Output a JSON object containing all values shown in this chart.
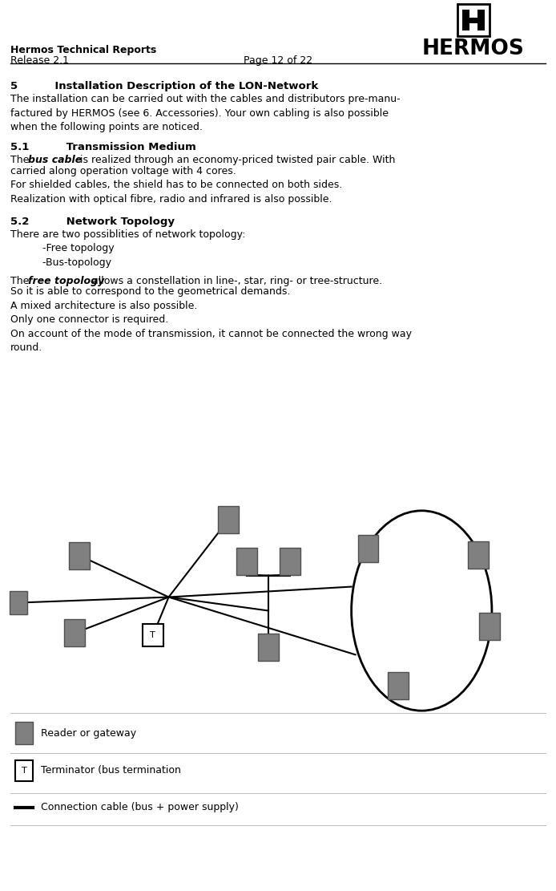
{
  "page_width": 6.94,
  "page_height": 11.11,
  "bg_color": "#ffffff",
  "header_left_bold": "Hermos Technical Reports",
  "header_left_normal": "Release 2.1",
  "header_center": "Page 12 of 22",
  "logo_text": "HERMOS",
  "section5_heading": "5          Installation Description of the LON-Network",
  "section5_body": "The installation can be carried out with the cables and distributors pre-manu-\nfactured by HERMOS (see 6. Accessories). Your own cabling is also possible\nwhen the following points are noticed.",
  "section51_heading": "5.1          Transmission Medium",
  "section51_body_before": "The ",
  "section51_bold_italic": "bus cable",
  "section51_body_after": " is realized through an economy-priced twisted pair cable. With\ncarried along operation voltage with 4 cores.\nFor shielded cables, the shield has to be connected on both sides.\nRealization with optical fibre, radio and infrared is also possible.",
  "section52_heading": "5.2          Network Topology",
  "section52_body": "There are two possiblities of network topology:\n          -Free topology\n          -Bus-topology",
  "section52_body2_before": "The ",
  "section52_bold_italic": "free topology",
  "section52_body2_after": " allows a constellation in line-, star, ring- or tree-structure.\nSo it is able to correspond to the geometrical demands.\nA mixed architecture is also possible.\nOnly one connector is required.\nOn account of the mode of transmission, it cannot be connected the wrong way\nround.",
  "legend_reader": "Reader or gateway",
  "legend_terminator": "Terminator (bus termination",
  "legend_cable": "Connection cable (bus + power supply)",
  "node_color": "#808080",
  "node_edge_color": "#505050",
  "line_color": "#000000"
}
